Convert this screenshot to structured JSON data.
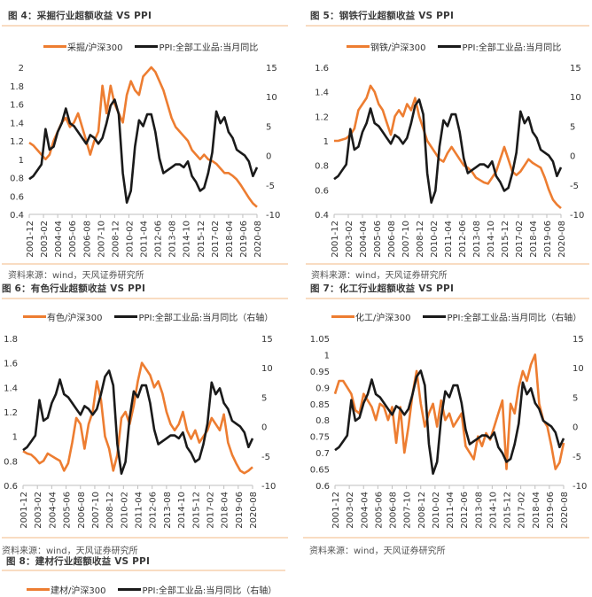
{
  "colors": {
    "ratio": "#ed7d31",
    "ppi": "#1a1a1a",
    "rule": "#f9dcc2"
  },
  "source_label": "资料来源：wind，天风证券研究所",
  "x_ticks": [
    "2001-12",
    "2003-02",
    "2004-04",
    "2005-06",
    "2006-08",
    "2007-10",
    "2008-12",
    "2010-02",
    "2011-04",
    "2012-06",
    "2013-08",
    "2014-10",
    "2015-12",
    "2017-02",
    "2018-04",
    "2019-06",
    "2020-08"
  ],
  "ppi_series": [
    -4.0,
    -3.5,
    -2.5,
    -1.5,
    4.5,
    1.0,
    1.5,
    4.0,
    5.5,
    8.0,
    5.5,
    5.0,
    4.0,
    3.0,
    2.0,
    3.5,
    3.0,
    2.0,
    3.0,
    5.5,
    8.5,
    9.5,
    7.0,
    -3.0,
    -8.0,
    -6.0,
    1.5,
    6.0,
    5.0,
    7.0,
    7.0,
    4.0,
    -0.5,
    -3.0,
    -2.5,
    -2.0,
    -1.5,
    -1.5,
    -2.0,
    -1.0,
    -3.5,
    -4.5,
    -6.0,
    -5.5,
    -3.0,
    0.5,
    7.5,
    5.5,
    6.5,
    4.0,
    3.0,
    1.0,
    0.5,
    0.0,
    -1.0,
    -3.5,
    -2.0
  ],
  "charts": [
    {
      "id": "fig4",
      "title": "图 4：采掘行业超额收益 VS PPI",
      "legend_ratio": "采掘/沪深300",
      "legend_ppi": "PPI:全部工业品:当月同比",
      "chart_data": {
        "type": "line",
        "title": "图 4：采掘行业超额收益 VS PPI",
        "xlabel": "",
        "ylabel": "",
        "ylim": [
          0.4,
          2.0
        ],
        "y_ticks": [
          "2",
          "1.8",
          "1.6",
          "1.4",
          "1.2",
          "1",
          "0.8",
          "0.6",
          "0.4"
        ],
        "y2lim": [
          -10,
          15
        ],
        "y2_ticks": [
          "15",
          "10",
          "5",
          "0",
          "-5",
          "-10"
        ],
        "legend_position": "top-center",
        "series": [
          {
            "name": "采掘/沪深300",
            "axis": "left",
            "values": [
              1.18,
              1.15,
              1.1,
              1.05,
              1.0,
              1.05,
              1.2,
              1.3,
              1.4,
              1.45,
              1.35,
              1.4,
              1.5,
              1.35,
              1.2,
              1.05,
              1.2,
              1.3,
              1.8,
              1.5,
              1.8,
              1.6,
              1.5,
              1.4,
              1.7,
              1.85,
              1.75,
              1.7,
              1.9,
              1.95,
              2.0,
              1.95,
              1.85,
              1.75,
              1.6,
              1.45,
              1.35,
              1.3,
              1.25,
              1.2,
              1.1,
              1.05,
              1.0,
              1.05,
              1.0,
              0.98,
              0.95,
              0.9,
              0.85,
              0.85,
              0.82,
              0.78,
              0.72,
              0.65,
              0.58,
              0.52,
              0.48
            ]
          },
          {
            "name": "PPI:全部工业品:当月同比",
            "axis": "right",
            "values": "ppi_series"
          }
        ]
      }
    },
    {
      "id": "fig5",
      "title": "图 5：钢铁行业超额收益 VS PPI",
      "legend_ratio": "钢铁/沪深300",
      "legend_ppi": "PPI:全部工业品:当月同比",
      "chart_data": {
        "type": "line",
        "title": "图 5：钢铁行业超额收益 VS PPI",
        "xlabel": "",
        "ylabel": "",
        "ylim": [
          0.4,
          1.6
        ],
        "y_ticks": [
          "1.6",
          "1.4",
          "1.2",
          "1",
          "0.8",
          "0.6",
          "0.4"
        ],
        "y2lim": [
          -10,
          15
        ],
        "y2_ticks": [
          "15",
          "10",
          "5",
          "0",
          "-5",
          "-10"
        ],
        "legend_position": "top-center",
        "series": [
          {
            "name": "钢铁/沪深300",
            "axis": "left",
            "values": [
              1.0,
              1.0,
              1.01,
              1.02,
              1.05,
              1.1,
              1.25,
              1.3,
              1.35,
              1.45,
              1.4,
              1.3,
              1.25,
              1.15,
              1.05,
              1.2,
              1.25,
              1.2,
              1.3,
              1.25,
              1.35,
              1.2,
              1.1,
              1.0,
              0.95,
              0.9,
              0.85,
              0.83,
              0.9,
              0.95,
              0.9,
              0.85,
              0.8,
              0.78,
              0.75,
              0.7,
              0.68,
              0.66,
              0.65,
              0.7,
              0.75,
              0.85,
              0.95,
              0.85,
              0.75,
              0.72,
              0.75,
              0.8,
              0.85,
              0.82,
              0.8,
              0.78,
              0.7,
              0.6,
              0.52,
              0.48,
              0.45
            ]
          },
          {
            "name": "PPI:全部工业品:当月同比",
            "axis": "right",
            "values": "ppi_series"
          }
        ]
      }
    },
    {
      "id": "fig6",
      "title": "图 6：有色行业超额收益 VS PPI",
      "legend_ratio": "有色/沪深300",
      "legend_ppi": "PPI:全部工业品:当月同比（右轴）",
      "chart_data": {
        "type": "line",
        "title": "图 6：有色行业超额收益 VS PPI",
        "xlabel": "",
        "ylabel": "",
        "ylim": [
          0.6,
          1.8
        ],
        "y_ticks": [
          "1.8",
          "1.6",
          "1.4",
          "1.2",
          "1",
          "0.8",
          "0.6"
        ],
        "y2lim": [
          -10,
          15
        ],
        "y2_ticks": [
          "15",
          "10",
          "5",
          "0",
          "-5",
          "-10"
        ],
        "legend_position": "top-center",
        "series": [
          {
            "name": "有色/沪深300",
            "axis": "left",
            "values": [
              0.88,
              0.86,
              0.85,
              0.82,
              0.78,
              0.8,
              0.86,
              0.84,
              0.82,
              0.8,
              0.72,
              0.78,
              0.95,
              1.15,
              1.1,
              0.9,
              1.1,
              1.2,
              1.45,
              1.3,
              1.0,
              0.9,
              0.72,
              0.85,
              1.15,
              1.2,
              1.1,
              1.25,
              1.45,
              1.6,
              1.55,
              1.5,
              1.4,
              1.45,
              1.35,
              1.2,
              1.1,
              1.05,
              1.1,
              1.2,
              1.05,
              0.98,
              1.05,
              0.95,
              1.0,
              1.05,
              1.15,
              1.1,
              1.05,
              1.18,
              0.95,
              0.85,
              0.78,
              0.72,
              0.7,
              0.72,
              0.75
            ]
          },
          {
            "name": "PPI:全部工业品:当月同比（右轴）",
            "axis": "right",
            "values": "ppi_series"
          }
        ]
      }
    },
    {
      "id": "fig7",
      "title": "图 7：化工行业超额收益 VS PPI",
      "legend_ratio": "化工/沪深300",
      "legend_ppi": "PPI:全部工业品:当月同比（右轴）",
      "chart_data": {
        "type": "line",
        "title": "图 7：化工行业超额收益 VS PPI",
        "xlabel": "",
        "ylabel": "",
        "ylim": [
          0.6,
          1.05
        ],
        "y_ticks": [
          "1.05",
          "1",
          "0.95",
          "0.9",
          "0.85",
          "0.8",
          "0.75",
          "0.7",
          "0.65",
          "0.6"
        ],
        "y2lim": [
          -10,
          15
        ],
        "y2_ticks": [
          "15",
          "10",
          "5",
          "0",
          "-5",
          "-10"
        ],
        "legend_position": "top-center",
        "series": [
          {
            "name": "化工/沪深300",
            "axis": "left",
            "values": [
              0.88,
              0.92,
              0.92,
              0.9,
              0.88,
              0.83,
              0.82,
              0.88,
              0.86,
              0.84,
              0.8,
              0.85,
              0.84,
              0.8,
              0.84,
              0.73,
              0.84,
              0.7,
              0.78,
              0.88,
              0.95,
              0.85,
              0.78,
              0.82,
              0.85,
              0.78,
              0.86,
              0.8,
              0.82,
              0.78,
              0.8,
              0.82,
              0.72,
              0.7,
              0.68,
              0.75,
              0.72,
              0.76,
              0.74,
              0.78,
              0.82,
              0.86,
              0.65,
              0.85,
              0.82,
              0.9,
              0.95,
              0.92,
              0.97,
              1.0,
              0.85,
              0.8,
              0.78,
              0.72,
              0.65,
              0.67,
              0.73
            ]
          },
          {
            "name": "PPI:全部工业品:当月同比（右轴）",
            "axis": "right",
            "values": "ppi_series"
          }
        ]
      }
    },
    {
      "id": "fig8",
      "title": "图 8：建材行业超额收益 VS PPI",
      "legend_ratio": "建材/沪深300",
      "legend_ppi": "PPI:全部工业品:当月同比（右轴）",
      "chart_data": {
        "type": "line",
        "title": "图 8：建材行业超额收益 VS PPI",
        "series": [
          {
            "name": "建材/沪深300"
          },
          {
            "name": "PPI:全部工业品:当月同比（右轴）"
          }
        ]
      }
    }
  ]
}
